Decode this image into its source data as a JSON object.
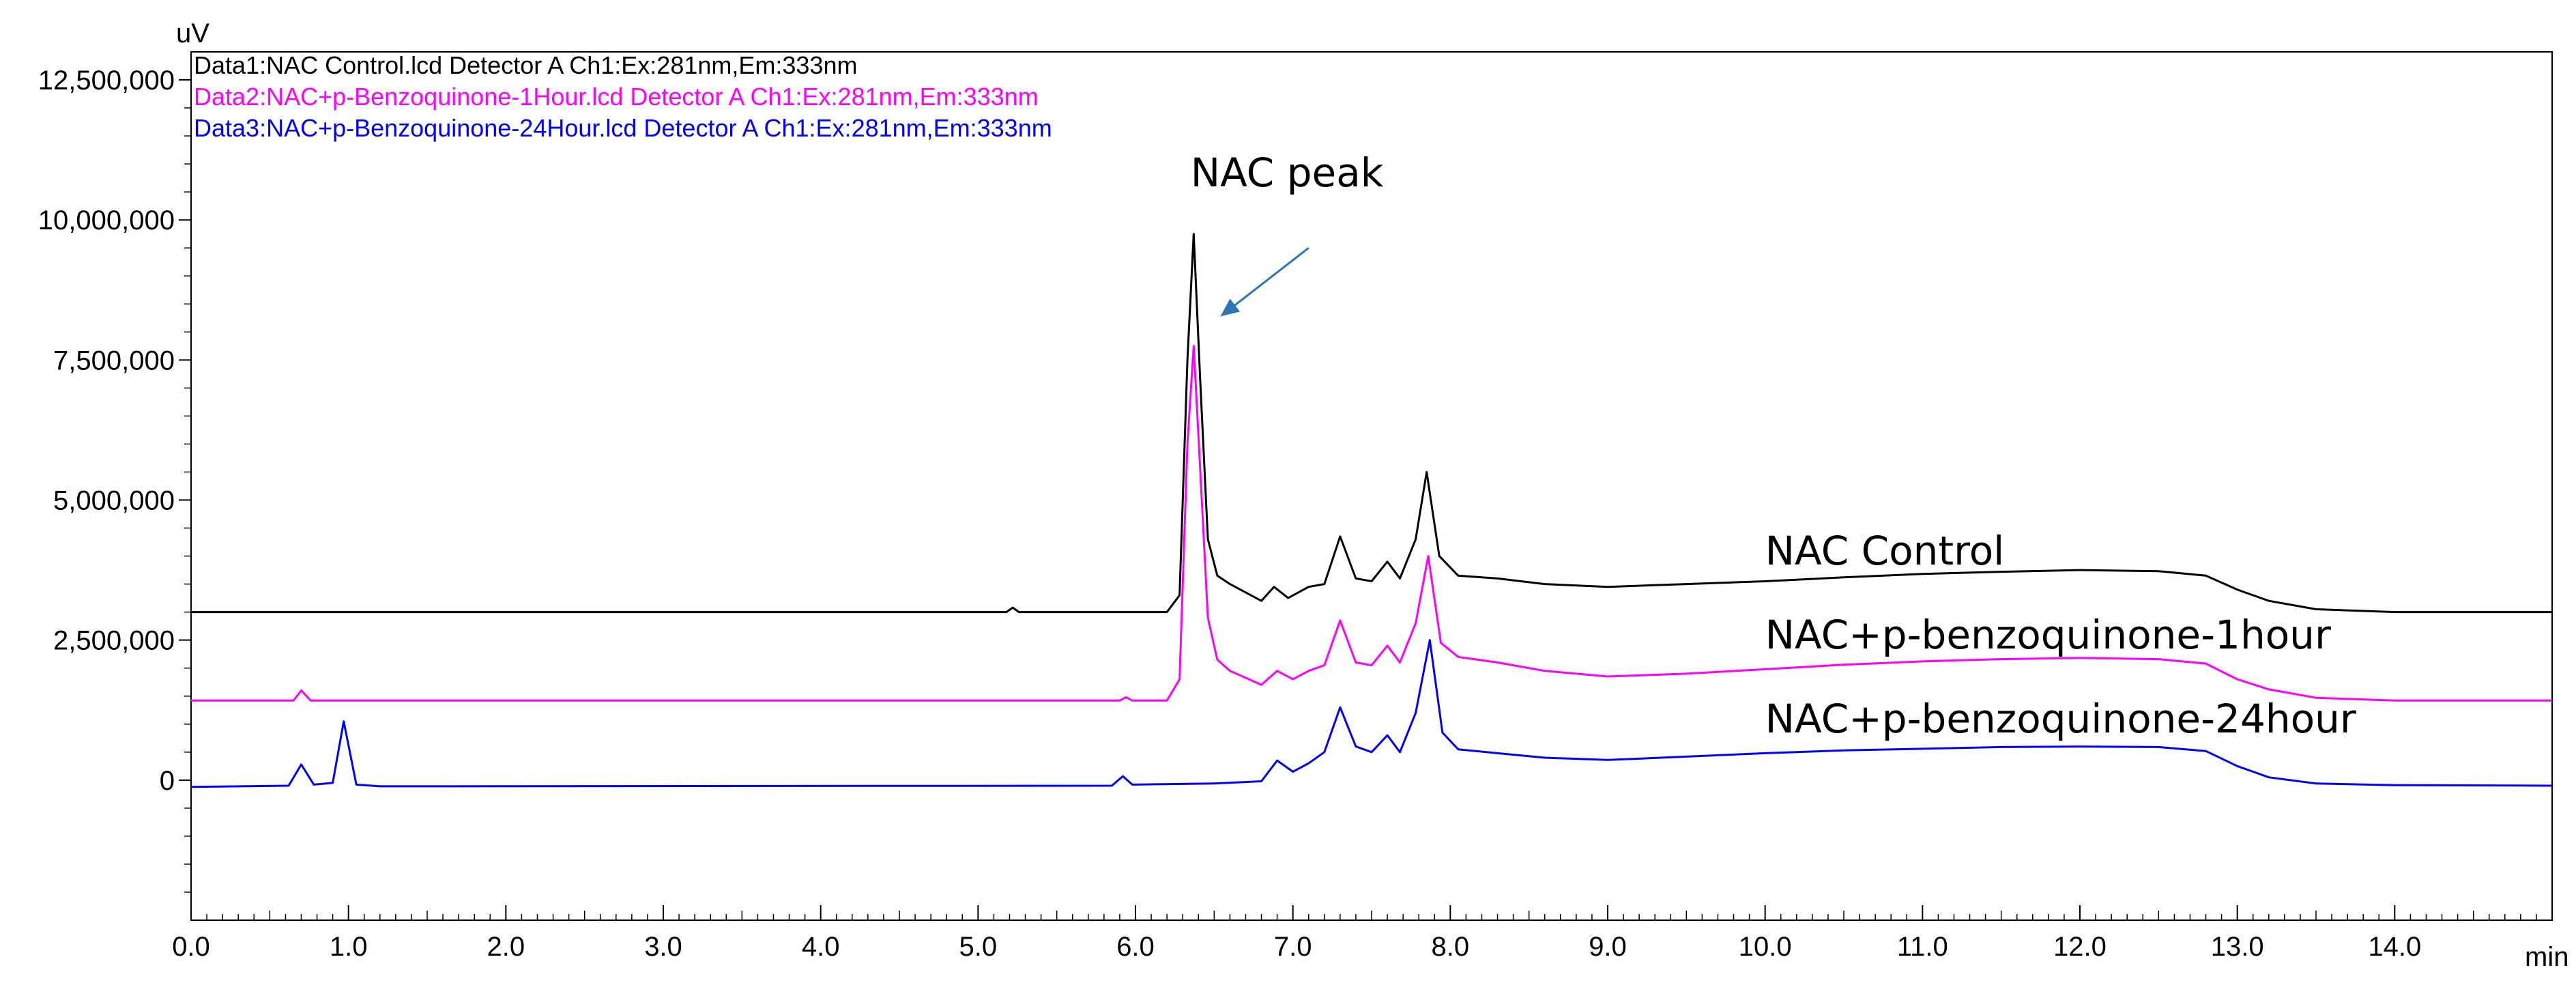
{
  "chart_data": {
    "type": "line",
    "xlabel": "min",
    "ylabel": "uV",
    "xlim": [
      0,
      15.0
    ],
    "ylim": [
      -2500000,
      13000000
    ],
    "x_ticks": [
      0,
      1,
      2,
      3,
      4,
      5,
      6,
      7,
      8,
      9,
      10,
      11,
      12,
      13,
      14
    ],
    "x_tick_labels": [
      "0.0",
      "1.0",
      "2.0",
      "3.0",
      "4.0",
      "5.0",
      "6.0",
      "7.0",
      "8.0",
      "9.0",
      "10.0",
      "11.0",
      "12.0",
      "13.0",
      "14.0"
    ],
    "y_ticks": [
      0,
      2500000,
      5000000,
      7500000,
      10000000,
      12500000
    ],
    "y_tick_labels": [
      "0",
      "2,500,000",
      "5,000,000",
      "7,500,000",
      "10,000,000",
      "12,500,000"
    ],
    "header_lines": [
      {
        "text": "Data1:NAC Control.lcd Detector A Ch1:Ex:281nm,Em:333nm",
        "color": "#000000"
      },
      {
        "text": "Data2:NAC+p-Benzoquinone-1Hour.lcd Detector A Ch1:Ex:281nm,Em:333nm",
        "color": "#ff00ff"
      },
      {
        "text": "Data3:NAC+p-Benzoquinone-24Hour.lcd Detector A Ch1:Ex:281nm,Em:333nm",
        "color": "#0000ff"
      }
    ],
    "annotations": [
      {
        "text": "NAC peak",
        "x": 6.35,
        "y": 10600000,
        "arrow_from": [
          7.1,
          9500000
        ],
        "arrow_to": [
          6.55,
          8300000
        ],
        "arrow_color": "#2e75b6"
      }
    ],
    "series": [
      {
        "name": "NAC Control",
        "color": "#000000",
        "label_x": 10.0,
        "label_y": 3850000,
        "points": [
          [
            0,
            3000000
          ],
          [
            5.18,
            3000000
          ],
          [
            5.22,
            3080000
          ],
          [
            5.26,
            3000000
          ],
          [
            6.2,
            3000000
          ],
          [
            6.28,
            3300000
          ],
          [
            6.33,
            7500000
          ],
          [
            6.37,
            9750000
          ],
          [
            6.41,
            7200000
          ],
          [
            6.46,
            4300000
          ],
          [
            6.52,
            3650000
          ],
          [
            6.6,
            3500000
          ],
          [
            6.8,
            3200000
          ],
          [
            6.88,
            3450000
          ],
          [
            6.97,
            3250000
          ],
          [
            7.1,
            3450000
          ],
          [
            7.2,
            3500000
          ],
          [
            7.3,
            4350000
          ],
          [
            7.4,
            3600000
          ],
          [
            7.5,
            3550000
          ],
          [
            7.6,
            3900000
          ],
          [
            7.68,
            3600000
          ],
          [
            7.78,
            4300000
          ],
          [
            7.85,
            5500000
          ],
          [
            7.93,
            4000000
          ],
          [
            8.05,
            3650000
          ],
          [
            8.3,
            3600000
          ],
          [
            8.6,
            3500000
          ],
          [
            9.0,
            3450000
          ],
          [
            9.5,
            3500000
          ],
          [
            10.0,
            3550000
          ],
          [
            10.5,
            3620000
          ],
          [
            11.0,
            3680000
          ],
          [
            11.5,
            3720000
          ],
          [
            12.0,
            3750000
          ],
          [
            12.5,
            3730000
          ],
          [
            12.8,
            3650000
          ],
          [
            13.0,
            3400000
          ],
          [
            13.2,
            3200000
          ],
          [
            13.5,
            3050000
          ],
          [
            14.0,
            3000000
          ],
          [
            15.0,
            3000000
          ]
        ]
      },
      {
        "name": "NAC+p-benzoquinone-1hour",
        "color": "#ff00ff",
        "label_x": 10.0,
        "label_y": 2350000,
        "points": [
          [
            0,
            1420000
          ],
          [
            0.65,
            1420000
          ],
          [
            0.7,
            1600000
          ],
          [
            0.76,
            1420000
          ],
          [
            5.9,
            1420000
          ],
          [
            5.94,
            1480000
          ],
          [
            5.98,
            1420000
          ],
          [
            6.2,
            1420000
          ],
          [
            6.28,
            1800000
          ],
          [
            6.33,
            6000000
          ],
          [
            6.37,
            7750000
          ],
          [
            6.41,
            5600000
          ],
          [
            6.46,
            2900000
          ],
          [
            6.52,
            2150000
          ],
          [
            6.6,
            1950000
          ],
          [
            6.8,
            1700000
          ],
          [
            6.9,
            1950000
          ],
          [
            7.0,
            1800000
          ],
          [
            7.1,
            1950000
          ],
          [
            7.2,
            2050000
          ],
          [
            7.3,
            2850000
          ],
          [
            7.4,
            2100000
          ],
          [
            7.5,
            2050000
          ],
          [
            7.6,
            2400000
          ],
          [
            7.68,
            2100000
          ],
          [
            7.78,
            2800000
          ],
          [
            7.86,
            4000000
          ],
          [
            7.94,
            2450000
          ],
          [
            8.05,
            2200000
          ],
          [
            8.3,
            2100000
          ],
          [
            8.6,
            1950000
          ],
          [
            9.0,
            1850000
          ],
          [
            9.5,
            1900000
          ],
          [
            10.0,
            1980000
          ],
          [
            10.5,
            2060000
          ],
          [
            11.0,
            2120000
          ],
          [
            11.5,
            2160000
          ],
          [
            12.0,
            2180000
          ],
          [
            12.5,
            2160000
          ],
          [
            12.8,
            2080000
          ],
          [
            13.0,
            1800000
          ],
          [
            13.2,
            1620000
          ],
          [
            13.5,
            1470000
          ],
          [
            14.0,
            1420000
          ],
          [
            15.0,
            1420000
          ]
        ]
      },
      {
        "name": "NAC+p-benzoquinone-24hour",
        "color": "#0000ff",
        "label_x": 10.0,
        "label_y": 850000,
        "points": [
          [
            0,
            -120000
          ],
          [
            0.62,
            -100000
          ],
          [
            0.7,
            280000
          ],
          [
            0.78,
            -80000
          ],
          [
            0.9,
            -50000
          ],
          [
            0.97,
            1050000
          ],
          [
            1.05,
            -80000
          ],
          [
            1.2,
            -110000
          ],
          [
            5.85,
            -100000
          ],
          [
            5.92,
            70000
          ],
          [
            5.98,
            -80000
          ],
          [
            6.5,
            -60000
          ],
          [
            6.8,
            -20000
          ],
          [
            6.9,
            350000
          ],
          [
            7.0,
            150000
          ],
          [
            7.1,
            300000
          ],
          [
            7.2,
            500000
          ],
          [
            7.3,
            1300000
          ],
          [
            7.4,
            600000
          ],
          [
            7.5,
            500000
          ],
          [
            7.6,
            800000
          ],
          [
            7.68,
            500000
          ],
          [
            7.78,
            1200000
          ],
          [
            7.87,
            2500000
          ],
          [
            7.95,
            850000
          ],
          [
            8.05,
            550000
          ],
          [
            8.3,
            480000
          ],
          [
            8.6,
            400000
          ],
          [
            9.0,
            360000
          ],
          [
            9.5,
            420000
          ],
          [
            10.0,
            480000
          ],
          [
            10.5,
            530000
          ],
          [
            11.0,
            560000
          ],
          [
            11.5,
            590000
          ],
          [
            12.0,
            600000
          ],
          [
            12.5,
            590000
          ],
          [
            12.8,
            520000
          ],
          [
            13.0,
            250000
          ],
          [
            13.2,
            50000
          ],
          [
            13.5,
            -60000
          ],
          [
            14.0,
            -90000
          ],
          [
            15.0,
            -100000
          ]
        ]
      }
    ]
  }
}
